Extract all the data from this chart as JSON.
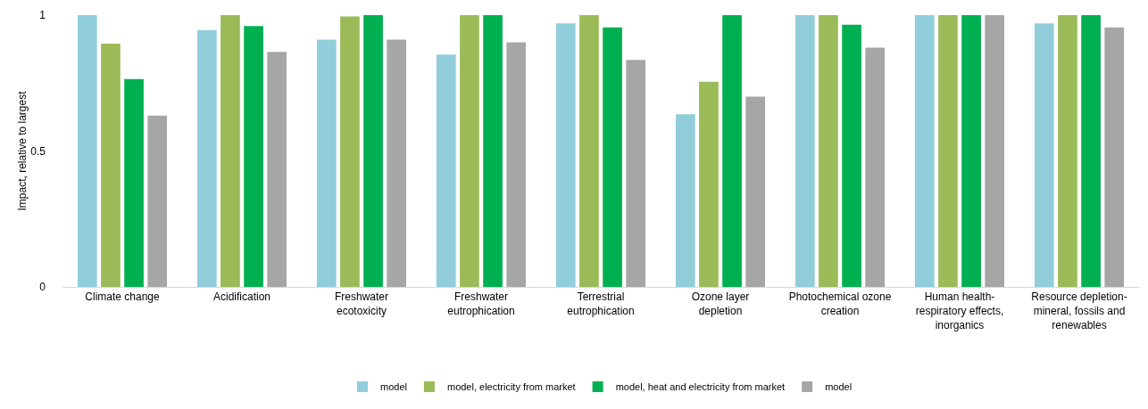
{
  "chart_data": {
    "type": "bar",
    "ylabel": "Impact, relative to largest",
    "categories": [
      "Climate change",
      "Acidification",
      "Freshwater ecotoxicity",
      "Freshwater eutrophication",
      "Terrestrial eutrophication",
      "Ozone layer depletion",
      "Photochemical ozone creation",
      "Human health-respiratory effects, inorganics",
      "Resource depletion-mineral, fossils and renewables"
    ],
    "series": [
      {
        "name": "model",
        "color": "#92cddc",
        "values": [
          1,
          0.945,
          0.91,
          0.855,
          0.97,
          0.635,
          1,
          1,
          0.97
        ]
      },
      {
        "name": "model, electricity from market",
        "color": "#9bbb59",
        "values": [
          0.895,
          1,
          0.995,
          1,
          1,
          0.755,
          1,
          1,
          1
        ]
      },
      {
        "name": "model, heat and electricity from market",
        "color": "#00b050",
        "values": [
          0.765,
          0.96,
          1,
          1,
          0.955,
          1,
          0.965,
          1,
          1
        ]
      },
      {
        "name": "model",
        "color": "#a6a6a6",
        "values": [
          0.63,
          0.865,
          0.91,
          0.9,
          0.835,
          0.7,
          0.88,
          1,
          0.955
        ]
      }
    ],
    "ylim": [
      0,
      1
    ],
    "yticks": [
      0,
      0.5,
      1
    ],
    "grid": false,
    "legend": "bottom"
  }
}
